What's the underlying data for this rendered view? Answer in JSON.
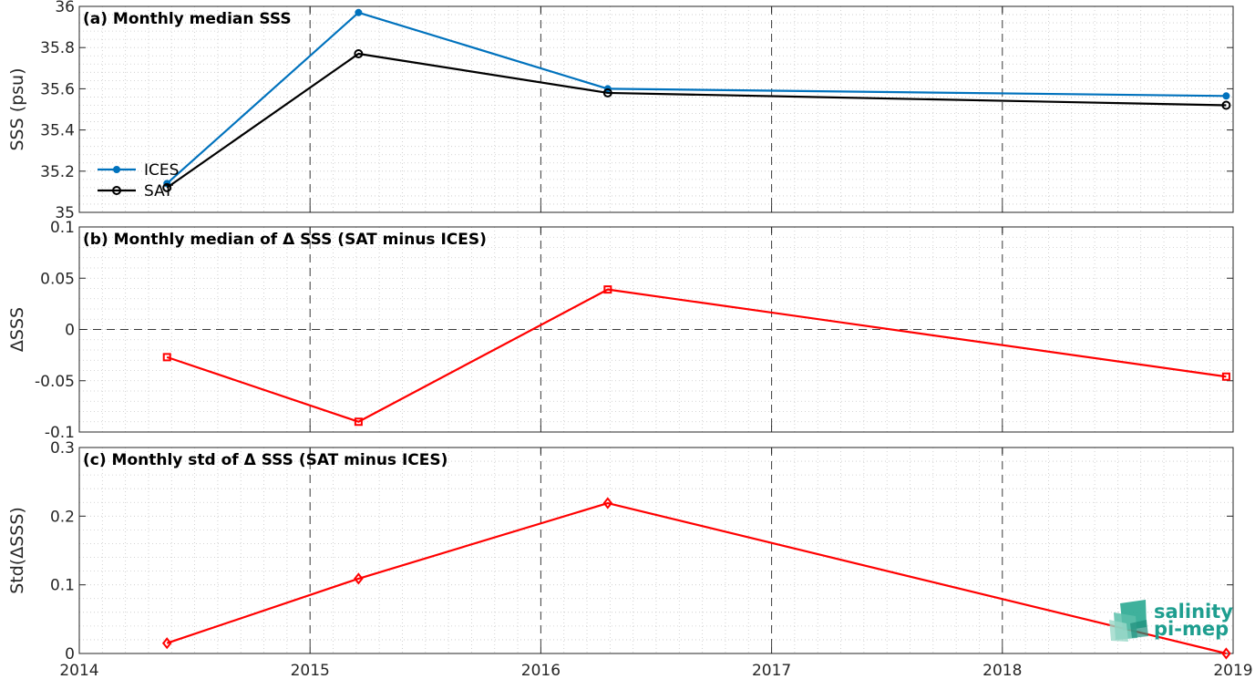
{
  "chart_data": [
    {
      "id": "a",
      "type": "line",
      "title": "(a) Monthly median SSS",
      "ylabel": "SSS (psu)",
      "xlim": [
        2014,
        2019
      ],
      "ylim": [
        35,
        36
      ],
      "yticks": [
        35,
        35.2,
        35.4,
        35.6,
        35.8,
        36
      ],
      "ytick_labels": [
        "35",
        "35.2",
        "35.4",
        "35.6",
        "35.8",
        "36"
      ],
      "legend_position": "left",
      "series": [
        {
          "name": "ICES",
          "color": "#0072bd",
          "marker": "dot",
          "x": [
            2014.38,
            2015.21,
            2016.29,
            2018.97
          ],
          "y": [
            35.14,
            35.97,
            35.6,
            35.565
          ]
        },
        {
          "name": "SAT",
          "color": "#000000",
          "marker": "circle",
          "x": [
            2014.38,
            2015.21,
            2016.29,
            2018.97
          ],
          "y": [
            35.12,
            35.77,
            35.58,
            35.52
          ]
        }
      ]
    },
    {
      "id": "b",
      "type": "line",
      "title": "(b) Monthly median of Δ SSS (SAT minus ICES)",
      "ylabel": "ΔSSS",
      "xlim": [
        2014,
        2019
      ],
      "ylim": [
        -0.1,
        0.1
      ],
      "yticks": [
        -0.1,
        -0.05,
        0,
        0.05,
        0.1
      ],
      "ytick_labels": [
        "-0.1",
        "-0.05",
        "0",
        "0.05",
        "0.1"
      ],
      "zero_line": true,
      "series": [
        {
          "color": "#ff0000",
          "marker": "square",
          "x": [
            2014.38,
            2015.21,
            2016.29,
            2018.97
          ],
          "y": [
            -0.027,
            -0.09,
            0.039,
            -0.046
          ]
        }
      ]
    },
    {
      "id": "c",
      "type": "line",
      "title": "(c) Monthly std of Δ SSS (SAT minus ICES)",
      "ylabel": "Std(ΔSSS)",
      "xlim": [
        2014,
        2019
      ],
      "ylim": [
        0,
        0.3
      ],
      "yticks": [
        0,
        0.1,
        0.2,
        0.3
      ],
      "ytick_labels": [
        "0",
        "0.1",
        "0.2",
        "0.3"
      ],
      "series": [
        {
          "color": "#ff0000",
          "marker": "diamond",
          "x": [
            2014.38,
            2015.21,
            2016.29,
            2018.97
          ],
          "y": [
            0.015,
            0.109,
            0.219,
            0.0
          ]
        }
      ]
    }
  ],
  "x_axis": {
    "ticks": [
      2014,
      2015,
      2016,
      2017,
      2018,
      2019
    ],
    "tick_labels": [
      "2014",
      "2015",
      "2016",
      "2017",
      "2018",
      "2019"
    ]
  },
  "grid": {
    "major_x": "dashed",
    "minor": "dotted"
  },
  "logo": {
    "line1": "salinity",
    "line2": "pi-mep"
  }
}
